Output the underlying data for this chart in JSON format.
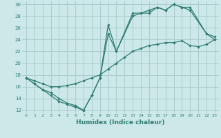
{
  "xlabel": "Humidex (Indice chaleur)",
  "bg_color": "#cce8e8",
  "grid_color": "#aacccc",
  "line_color": "#2e7d6e",
  "xlim": [
    -0.5,
    23.5
  ],
  "ylim": [
    11.5,
    30.5
  ],
  "xticks": [
    0,
    1,
    2,
    3,
    4,
    5,
    6,
    7,
    8,
    9,
    10,
    11,
    12,
    13,
    14,
    15,
    16,
    17,
    18,
    19,
    20,
    21,
    22,
    23
  ],
  "yticks": [
    12,
    14,
    16,
    18,
    20,
    22,
    24,
    26,
    28,
    30
  ],
  "line1_x": [
    0,
    1,
    2,
    3,
    4,
    5,
    6,
    7,
    8,
    9,
    10,
    11,
    12,
    13,
    14,
    15,
    16,
    17,
    18,
    19,
    20,
    21,
    22,
    23
  ],
  "line1_y": [
    17.5,
    17.0,
    16.5,
    16.0,
    16.0,
    16.2,
    16.5,
    17.0,
    17.5,
    18.0,
    19.0,
    20.0,
    21.0,
    22.0,
    22.5,
    23.0,
    23.2,
    23.5,
    23.5,
    23.8,
    23.0,
    22.8,
    23.2,
    24.0
  ],
  "line2_x": [
    0,
    1,
    2,
    3,
    4,
    5,
    6,
    7,
    8,
    9,
    10,
    11,
    13,
    14,
    15,
    16,
    17,
    18,
    19,
    20,
    22,
    23
  ],
  "line2_y": [
    17.5,
    16.5,
    15.5,
    15.0,
    14.0,
    13.2,
    12.8,
    12.0,
    14.5,
    17.5,
    25.0,
    22.0,
    28.0,
    28.5,
    28.5,
    29.5,
    29.0,
    30.0,
    29.5,
    29.0,
    25.0,
    24.5
  ],
  "line3_x": [
    0,
    1,
    2,
    3,
    4,
    5,
    6,
    7,
    8,
    9,
    10,
    11,
    13,
    14,
    15,
    16,
    17,
    18,
    19,
    20,
    22,
    23
  ],
  "line3_y": [
    17.5,
    16.5,
    15.5,
    14.5,
    13.5,
    13.0,
    12.5,
    12.0,
    14.5,
    17.5,
    26.5,
    22.0,
    28.5,
    28.5,
    29.0,
    29.5,
    29.0,
    30.0,
    29.5,
    29.5,
    25.0,
    24.0
  ]
}
